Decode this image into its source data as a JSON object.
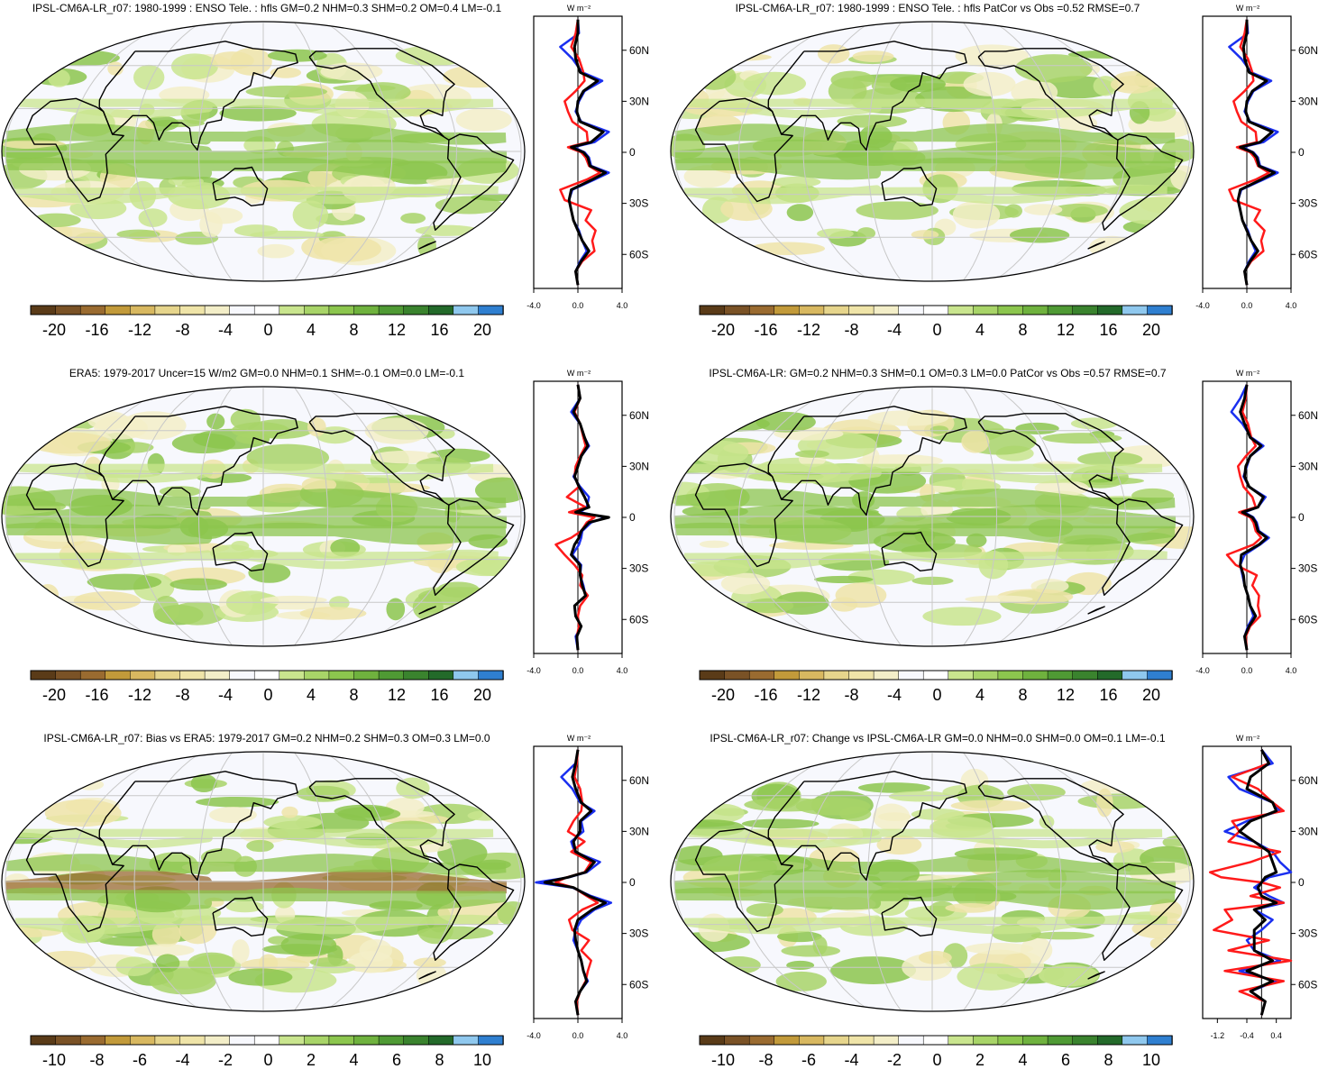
{
  "colors": {
    "ocean_bg": "#f7f8fd",
    "grid": "#c8c8c8",
    "coast": "#000000",
    "blue_line": "#1a2ff0",
    "red_line": "#ff1a1a",
    "black_line": "#000000",
    "palette": [
      "#5a3b18",
      "#7a5226",
      "#9a6b30",
      "#c29a3a",
      "#d8b860",
      "#e6d58c",
      "#efe4a8",
      "#f3eec8",
      "#f7f8fd",
      "#ffffff",
      "#c9e58e",
      "#a8d468",
      "#8cc64e",
      "#6fb23e",
      "#4f9a34",
      "#3a832e",
      "#236a2a",
      "#8fc8ee",
      "#2f7fd0"
    ]
  },
  "panels": [
    {
      "title": "IPSL-CM6A-LR_r07: 1980-1999 : ENSO Tele. : hfls GM=0.2 NHM=0.3 SHM=0.2 OM=0.4 LM=-0.1",
      "colorbar_labels": [
        "-20",
        "-16",
        "-12",
        "-8",
        "-4",
        "0",
        "4",
        "8",
        "12",
        "16",
        "20"
      ],
      "zonal": {
        "unit": "W m⁻²",
        "xticks": [
          "-4.0",
          "0.0",
          "4.0"
        ],
        "xlim": [
          -4,
          4
        ],
        "lat_labels": [
          "60N",
          "30N",
          "0",
          "30S",
          "60S"
        ],
        "lats": [
          78,
          70,
          62,
          55,
          47,
          42,
          36,
          30,
          24,
          18,
          12,
          6,
          3,
          0,
          -3,
          -8,
          -12,
          -16,
          -22,
          -28,
          -34,
          -40,
          -46,
          -52,
          -58,
          -64,
          -70,
          -78
        ],
        "blue": [
          0.0,
          0.1,
          -1.6,
          -0.5,
          0.4,
          2.2,
          0.6,
          0.1,
          -0.2,
          0.3,
          2.8,
          1.5,
          -0.4,
          0.6,
          1.0,
          1.2,
          2.8,
          1.5,
          -0.5,
          -0.8,
          -0.6,
          -0.4,
          0.1,
          0.4,
          0.8,
          0.2,
          -0.2,
          0.0
        ],
        "red": [
          0.0,
          -0.2,
          -0.6,
          0.1,
          0.5,
          0.6,
          -0.2,
          -1.2,
          -0.9,
          -0.5,
          0.8,
          0.9,
          -0.9,
          0.3,
          0.7,
          1.0,
          2.0,
          0.8,
          -1.6,
          -1.2,
          1.2,
          0.7,
          1.6,
          1.3,
          1.5,
          0.4,
          -0.2,
          0.0
        ],
        "black": [
          0.0,
          0.0,
          -0.3,
          -0.2,
          0.2,
          1.8,
          0.5,
          0.0,
          -0.1,
          0.2,
          2.3,
          1.2,
          -0.6,
          0.5,
          0.9,
          1.1,
          2.5,
          1.3,
          -0.6,
          -0.8,
          -0.6,
          -0.4,
          0.0,
          0.4,
          1.0,
          0.3,
          -0.2,
          0.0
        ]
      }
    },
    {
      "title": "IPSL-CM6A-LR_r07: 1980-1999 : ENSO Tele. : hfls PatCor vs Obs =0.52 RMSE=0.7",
      "colorbar_labels": [
        "-20",
        "-16",
        "-12",
        "-8",
        "-4",
        "0",
        "4",
        "8",
        "12",
        "16",
        "20"
      ],
      "zonal": {
        "unit": "W m⁻²",
        "xticks": [
          "-4.0",
          "0.0",
          "4.0"
        ],
        "xlim": [
          -4,
          4
        ],
        "lat_labels": [
          "60N",
          "30N",
          "0",
          "30S",
          "60S"
        ],
        "lats": [
          78,
          70,
          62,
          55,
          47,
          42,
          36,
          30,
          24,
          18,
          12,
          6,
          3,
          0,
          -3,
          -8,
          -12,
          -16,
          -22,
          -28,
          -34,
          -40,
          -46,
          -52,
          -58,
          -64,
          -70,
          -78
        ],
        "blue": [
          0.0,
          0.1,
          -1.6,
          -0.5,
          0.4,
          2.2,
          0.6,
          0.1,
          -0.2,
          0.3,
          2.8,
          1.5,
          -0.4,
          0.6,
          1.0,
          1.2,
          2.8,
          1.5,
          -0.5,
          -0.8,
          -0.6,
          -0.4,
          0.1,
          0.4,
          0.8,
          0.2,
          -0.2,
          0.0
        ],
        "red": [
          0.0,
          -0.2,
          -0.6,
          0.1,
          0.5,
          0.6,
          -0.2,
          -1.2,
          -0.9,
          -0.5,
          0.8,
          0.9,
          -0.9,
          0.3,
          0.7,
          1.0,
          2.0,
          0.8,
          -1.6,
          -1.2,
          1.2,
          0.7,
          1.6,
          1.3,
          1.5,
          0.4,
          -0.2,
          0.0
        ],
        "black": [
          0.0,
          0.0,
          -0.3,
          -0.2,
          0.2,
          1.8,
          0.5,
          0.0,
          -0.1,
          0.2,
          2.3,
          1.2,
          -0.6,
          0.5,
          0.9,
          1.1,
          2.5,
          1.3,
          -0.6,
          -0.8,
          -0.6,
          -0.4,
          0.0,
          0.4,
          1.0,
          0.3,
          -0.2,
          0.0
        ]
      }
    },
    {
      "title": "ERA5: 1979-2017 Uncer=15 W/m2 GM=0.0 NHM=0.1 SHM=-0.1 OM=0.0 LM=-0.1",
      "colorbar_labels": [
        "-20",
        "-16",
        "-12",
        "-8",
        "-4",
        "0",
        "4",
        "8",
        "12",
        "16",
        "20"
      ],
      "zonal": {
        "unit": "W m⁻²",
        "xticks": [
          "-4.0",
          "0.0",
          "4.0"
        ],
        "xlim": [
          -4,
          4
        ],
        "lat_labels": [
          "60N",
          "30N",
          "0",
          "30S",
          "60S"
        ],
        "lats": [
          78,
          70,
          62,
          55,
          47,
          42,
          36,
          30,
          24,
          18,
          12,
          6,
          3,
          0,
          -3,
          -8,
          -12,
          -16,
          -22,
          -28,
          -34,
          -40,
          -46,
          -52,
          -58,
          -64,
          -70,
          -78
        ],
        "blue": [
          0.0,
          0.2,
          -0.6,
          0.2,
          0.6,
          1.0,
          0.3,
          0.0,
          -0.4,
          0.2,
          1.0,
          0.8,
          0.2,
          2.5,
          1.2,
          0.4,
          0.3,
          0.1,
          -0.5,
          0.3,
          0.2,
          0.5,
          0.7,
          -0.3,
          -0.2,
          0.3,
          -0.2,
          0.0
        ],
        "red": [
          0.0,
          0.2,
          -0.3,
          0.2,
          0.5,
          0.7,
          0.2,
          -0.2,
          -0.3,
          0.1,
          -1.0,
          0.7,
          -0.8,
          1.5,
          0.8,
          0.3,
          -0.6,
          -2.0,
          -1.2,
          -0.3,
          0.4,
          0.2,
          0.9,
          0.2,
          0.0,
          0.1,
          -0.1,
          0.0
        ],
        "black": [
          0.0,
          0.2,
          -0.4,
          0.2,
          0.6,
          0.9,
          0.3,
          0.0,
          -0.3,
          0.1,
          0.6,
          1.0,
          -0.2,
          2.8,
          1.0,
          0.3,
          0.1,
          -0.3,
          -0.6,
          0.2,
          0.2,
          0.4,
          0.7,
          -0.3,
          -0.2,
          0.3,
          -0.1,
          0.0
        ]
      }
    },
    {
      "title": "IPSL-CM6A-LR: GM=0.2 NHM=0.3 SHM=0.1 OM=0.3 LM=0.0 PatCor vs Obs =0.57 RMSE=0.7",
      "colorbar_labels": [
        "-20",
        "-16",
        "-12",
        "-8",
        "-4",
        "0",
        "4",
        "8",
        "12",
        "16",
        "20"
      ],
      "zonal": {
        "unit": "W m⁻²",
        "xticks": [
          "-4.0",
          "0.0",
          "4.0"
        ],
        "xlim": [
          -4,
          4
        ],
        "lat_labels": [
          "60N",
          "30N",
          "0",
          "30S",
          "60S"
        ],
        "lats": [
          78,
          70,
          62,
          55,
          47,
          42,
          36,
          30,
          24,
          18,
          12,
          6,
          3,
          0,
          -3,
          -8,
          -12,
          -16,
          -22,
          -28,
          -34,
          -40,
          -46,
          -52,
          -58,
          -64,
          -70,
          -78
        ],
        "blue": [
          0.0,
          -0.6,
          -1.4,
          -0.4,
          0.4,
          1.5,
          0.3,
          0.0,
          -0.3,
          0.2,
          1.7,
          1.0,
          -0.2,
          0.6,
          0.9,
          1.1,
          2.0,
          1.2,
          -0.2,
          -0.6,
          -0.4,
          -0.2,
          0.1,
          0.3,
          0.6,
          0.1,
          -0.2,
          0.0
        ],
        "red": [
          0.0,
          -0.1,
          -0.4,
          0.1,
          0.4,
          0.8,
          -0.1,
          -0.8,
          -0.6,
          -0.3,
          0.5,
          0.8,
          -0.7,
          0.3,
          0.6,
          0.8,
          1.3,
          0.6,
          -1.8,
          -1.0,
          0.9,
          0.5,
          1.1,
          1.0,
          1.2,
          0.3,
          -0.1,
          0.0
        ],
        "black": [
          0.0,
          -0.2,
          -0.6,
          -0.2,
          0.3,
          1.3,
          0.3,
          -0.1,
          -0.2,
          0.2,
          1.5,
          1.0,
          -0.4,
          0.5,
          0.8,
          1.0,
          1.8,
          1.1,
          -0.5,
          -0.6,
          -0.3,
          -0.2,
          0.1,
          0.3,
          0.8,
          0.2,
          -0.2,
          0.0
        ]
      }
    },
    {
      "title": "IPSL-CM6A-LR_r07: Bias vs ERA5: 1979-2017 GM=0.2 NHM=0.2 SHM=0.3 OM=0.3 LM=0.0",
      "colorbar_labels": [
        "-10",
        "-8",
        "-6",
        "-4",
        "-2",
        "0",
        "2",
        "4",
        "6",
        "8",
        "10"
      ],
      "zonal": {
        "unit": "W m⁻²",
        "xticks": [
          "-4.0",
          "0.0",
          "4.0"
        ],
        "xlim": [
          -4,
          4
        ],
        "lat_labels": [
          "60N",
          "30N",
          "0",
          "30S",
          "60S"
        ],
        "lats": [
          78,
          70,
          62,
          55,
          47,
          42,
          36,
          30,
          24,
          18,
          12,
          6,
          3,
          0,
          -3,
          -8,
          -12,
          -16,
          -22,
          -28,
          -34,
          -40,
          -46,
          -52,
          -58,
          -64,
          -70,
          -78
        ],
        "blue": [
          0.0,
          -0.2,
          -1.5,
          -0.5,
          0.2,
          1.5,
          0.3,
          0.5,
          -0.6,
          -0.3,
          2.0,
          0.8,
          -0.8,
          -3.8,
          -0.5,
          1.2,
          3.0,
          1.5,
          0.3,
          -0.2,
          -0.4,
          0.0,
          0.3,
          0.5,
          0.9,
          0.2,
          -0.2,
          0.0
        ],
        "red": [
          0.0,
          -0.1,
          -0.3,
          0.2,
          0.4,
          0.3,
          -0.4,
          -0.9,
          0.6,
          -0.6,
          1.2,
          0.6,
          -1.0,
          -2.0,
          -0.4,
          0.8,
          1.8,
          0.4,
          -0.8,
          -0.5,
          1.0,
          0.3,
          1.2,
          0.9,
          0.7,
          0.2,
          -0.1,
          0.0
        ],
        "black": [
          0.0,
          -0.2,
          -0.5,
          -0.2,
          0.3,
          1.2,
          0.2,
          0.2,
          -0.4,
          -0.2,
          1.5,
          0.7,
          -0.9,
          -3.0,
          -0.4,
          1.0,
          2.5,
          1.3,
          0.0,
          -0.3,
          -0.2,
          0.0,
          0.3,
          0.5,
          0.8,
          0.2,
          -0.2,
          0.0
        ]
      }
    },
    {
      "title": "IPSL-CM6A-LR_r07: Change vs IPSL-CM6A-LR GM=0.0 NHM=0.0 SHM=0.0 OM=0.1 LM=-0.1",
      "colorbar_labels": [
        "-10",
        "-8",
        "-6",
        "-4",
        "-2",
        "0",
        "2",
        "4",
        "6",
        "8",
        "10"
      ],
      "zonal": {
        "unit": "W m⁻²",
        "xticks": [
          "-1.2",
          "-0.4",
          "0.4"
        ],
        "xlim": [
          -1.6,
          0.8
        ],
        "lat_labels": [
          "60N",
          "30N",
          "0",
          "30S",
          "60S"
        ],
        "lats": [
          78,
          70,
          62,
          55,
          47,
          42,
          36,
          30,
          24,
          18,
          12,
          6,
          3,
          0,
          -3,
          -8,
          -12,
          -16,
          -22,
          -28,
          -34,
          -40,
          -46,
          -52,
          -58,
          -64,
          -70,
          -78
        ],
        "blue": [
          0.0,
          0.3,
          -0.9,
          -0.6,
          0.3,
          0.5,
          -0.4,
          -1.0,
          -0.2,
          0.3,
          0.5,
          0.8,
          0.2,
          0.0,
          -0.2,
          0.2,
          0.6,
          -0.2,
          0.3,
          0.0,
          -0.4,
          -0.2,
          0.5,
          -0.6,
          0.4,
          -0.3,
          0.1,
          0.0
        ],
        "red": [
          0.0,
          0.2,
          -0.8,
          -0.1,
          0.3,
          0.6,
          -0.8,
          -0.6,
          -0.9,
          0.5,
          -0.3,
          -1.4,
          -1.1,
          0.0,
          0.5,
          -0.3,
          0.6,
          -1.0,
          -0.8,
          -1.3,
          0.2,
          -0.9,
          0.8,
          -1.0,
          0.6,
          -0.6,
          0.1,
          0.0
        ],
        "black": [
          0.0,
          0.2,
          -0.3,
          -0.4,
          0.3,
          0.4,
          -0.3,
          -0.6,
          -0.2,
          0.2,
          0.3,
          0.4,
          0.1,
          0.0,
          -0.1,
          0.0,
          0.4,
          -0.2,
          0.1,
          -0.2,
          -0.2,
          -0.2,
          0.3,
          -0.4,
          0.3,
          -0.3,
          0.1,
          0.0
        ]
      }
    }
  ]
}
